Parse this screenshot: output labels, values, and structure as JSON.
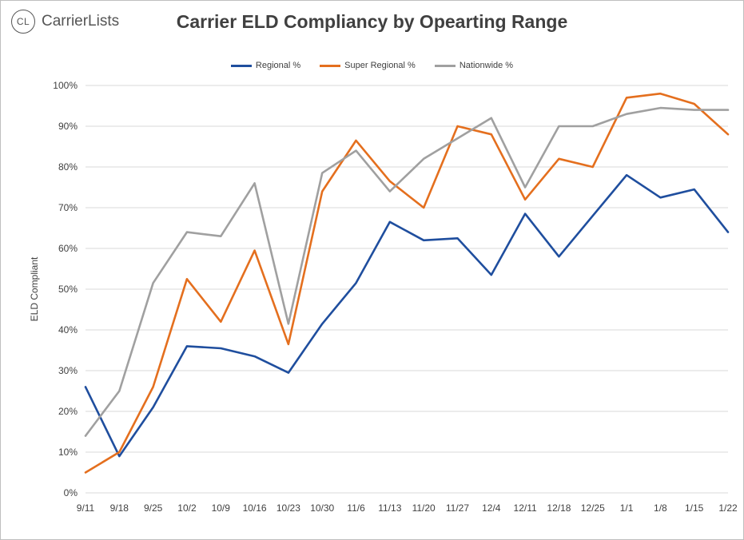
{
  "logo": {
    "badge": "CL",
    "text": "CarrierLists"
  },
  "chart_data": {
    "type": "line",
    "title": "Carrier ELD Compliancy by Opearting Range",
    "ylabel": "ELD Compliant",
    "xlabel": "",
    "ylim": [
      0,
      100
    ],
    "y_ticks": [
      0,
      10,
      20,
      30,
      40,
      50,
      60,
      70,
      80,
      90,
      100
    ],
    "y_tick_format": "%",
    "grid": true,
    "legend_position": "top",
    "categories": [
      "9/11",
      "9/18",
      "9/25",
      "10/2",
      "10/9",
      "10/16",
      "10/23",
      "10/30",
      "11/6",
      "11/13",
      "11/20",
      "11/27",
      "12/4",
      "12/11",
      "12/18",
      "12/25",
      "1/1",
      "1/8",
      "1/15",
      "1/22"
    ],
    "series": [
      {
        "name": "Regional %",
        "color": "#1f4e9e",
        "values": [
          26,
          9,
          21,
          36,
          35.5,
          33.5,
          29.5,
          41.5,
          51.5,
          66.5,
          62,
          62.5,
          53.5,
          68.5,
          58,
          68,
          78,
          72.5,
          74.5,
          64
        ]
      },
      {
        "name": "Super Regional %",
        "color": "#e46f1e",
        "values": [
          5,
          10,
          26,
          52.5,
          42,
          59.5,
          36.5,
          74,
          86.5,
          76.5,
          70,
          90,
          88,
          72,
          82,
          80,
          97,
          98,
          95.5,
          88
        ]
      },
      {
        "name": "Nationwide %",
        "color": "#a0a0a0",
        "values": [
          14,
          25,
          51.5,
          64,
          63,
          76,
          41.5,
          78.5,
          84,
          74,
          82,
          87,
          92,
          75,
          90,
          90,
          93,
          94.5,
          94,
          94
        ]
      }
    ]
  }
}
